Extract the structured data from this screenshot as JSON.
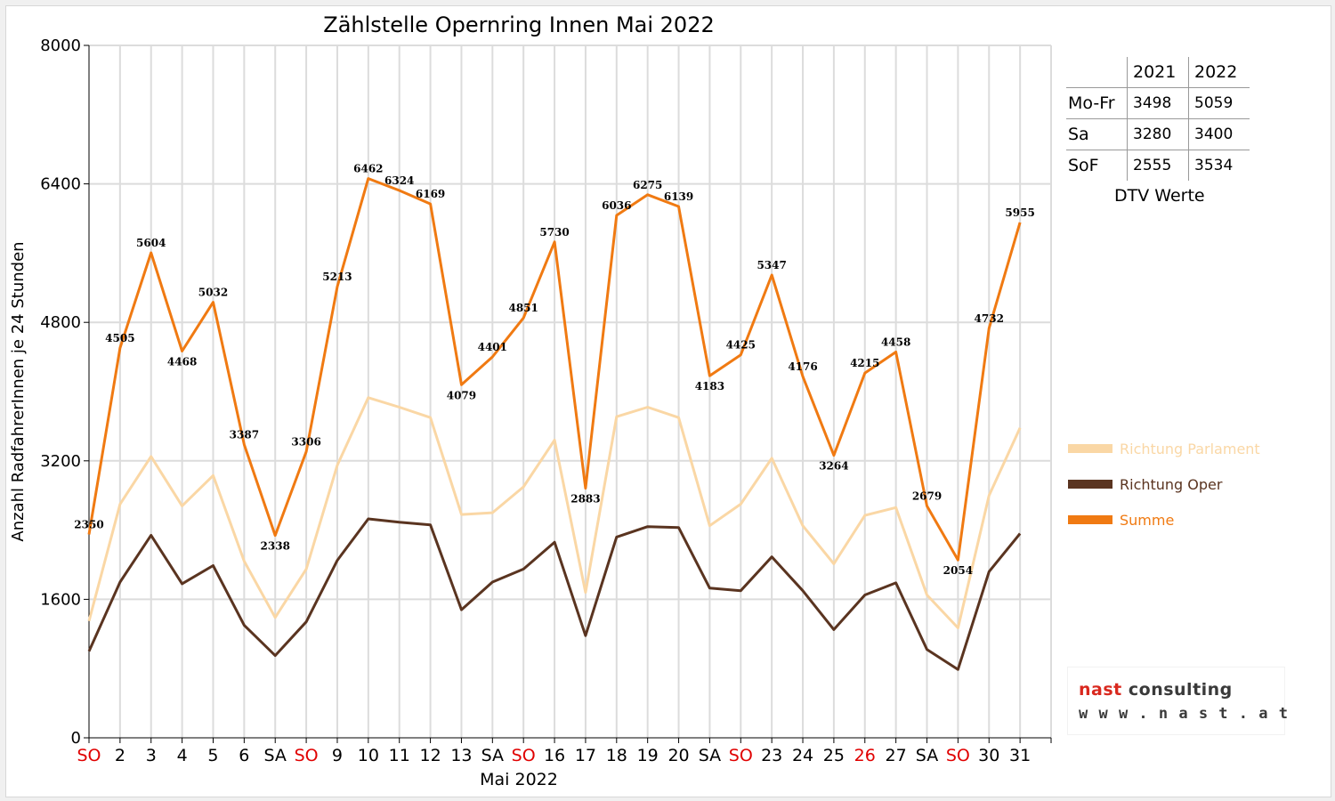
{
  "chart_data": {
    "type": "line",
    "title": "Zählstelle Opernring Innen Mai 2022",
    "xlabel": "Mai 2022",
    "ylabel": "Anzahl RadfahrerInnen je 24 Stunden",
    "ylim": [
      0,
      8000
    ],
    "yticks": [
      0,
      1600,
      3200,
      4800,
      6400,
      8000
    ],
    "grid": true,
    "legend_position": "right",
    "categories": [
      "SO",
      "2",
      "3",
      "4",
      "5",
      "6",
      "SA",
      "SO",
      "9",
      "10",
      "11",
      "12",
      "13",
      "SA",
      "SO",
      "16",
      "17",
      "18",
      "19",
      "20",
      "SA",
      "SO",
      "23",
      "24",
      "25",
      "26",
      "27",
      "SA",
      "SO",
      "30",
      "31"
    ],
    "category_colors": [
      "#e00000",
      "#000000",
      "#000000",
      "#000000",
      "#000000",
      "#000000",
      "#000000",
      "#e00000",
      "#000000",
      "#000000",
      "#000000",
      "#000000",
      "#000000",
      "#000000",
      "#e00000",
      "#000000",
      "#000000",
      "#000000",
      "#000000",
      "#000000",
      "#000000",
      "#e00000",
      "#000000",
      "#000000",
      "#000000",
      "#e00000",
      "#000000",
      "#000000",
      "#e00000",
      "#000000",
      "#000000"
    ],
    "series": [
      {
        "name": "Richtung Parlament",
        "color": "#fad7a5",
        "values": [
          1350,
          2700,
          3250,
          2680,
          3030,
          2040,
          1390,
          1950,
          3150,
          3930,
          3820,
          3700,
          2580,
          2600,
          2900,
          3440,
          1680,
          3710,
          3820,
          3700,
          2450,
          2700,
          3230,
          2450,
          2010,
          2570,
          2660,
          1650,
          1270,
          2800,
          3580
        ]
      },
      {
        "name": "Richtung Oper",
        "color": "#5a3420",
        "values": [
          1000,
          1800,
          2340,
          1780,
          1990,
          1300,
          950,
          1340,
          2050,
          2530,
          2490,
          2460,
          1480,
          1800,
          1950,
          2260,
          1180,
          2320,
          2440,
          2430,
          1730,
          1700,
          2090,
          1700,
          1250,
          1650,
          1790,
          1020,
          790,
          1920,
          2360
        ]
      },
      {
        "name": "Summe",
        "color": "#f07a12",
        "values": [
          2350,
          4505,
          5604,
          4468,
          5032,
          3387,
          2338,
          3306,
          5213,
          6462,
          6324,
          6169,
          4079,
          4401,
          4851,
          5730,
          2883,
          6036,
          6275,
          6139,
          4183,
          4425,
          5347,
          4176,
          3264,
          4215,
          4458,
          2679,
          2054,
          4732,
          5955
        ]
      }
    ],
    "data_labels": [
      "2350",
      "4505",
      "5604",
      "4468",
      "5032",
      "3387",
      "2338",
      "3306",
      "5213",
      "6462",
      "6324",
      "6169",
      "4079",
      "4401",
      "4851",
      "5730",
      "2883",
      "6036",
      "6275",
      "6139",
      "4183",
      "4425",
      "5347",
      "4176",
      "3264",
      "4215",
      "4458",
      "2679",
      "2054",
      "4732",
      "5955"
    ]
  },
  "dtv_table": {
    "headers": [
      "",
      "2021",
      "2022"
    ],
    "rows": [
      {
        "label": "Mo-Fr",
        "v2021": "3498",
        "v2022": "5059"
      },
      {
        "label": "Sa",
        "v2021": "3280",
        "v2022": "3400"
      },
      {
        "label": "SoF",
        "v2021": "2555",
        "v2022": "3534"
      }
    ],
    "caption": "DTV Werte"
  },
  "logo": {
    "brand_part1": "nast",
    "brand_part2": "consulting",
    "url": "w w w . n a s t . a t",
    "colors": {
      "red": "#d9281e",
      "dark": "#3a3a3a"
    }
  }
}
